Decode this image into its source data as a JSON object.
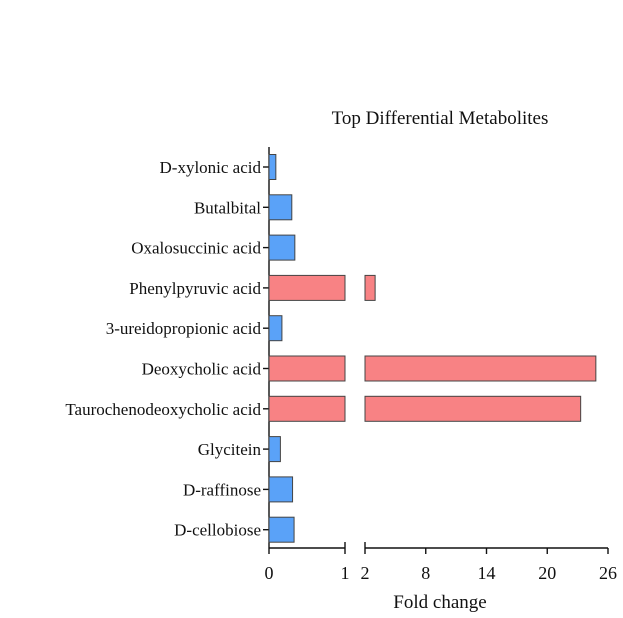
{
  "chart_data": {
    "type": "bar",
    "orientation": "horizontal",
    "title": "Top Differential Metabolites",
    "xlabel": "Fold change",
    "ylabel": "",
    "categories": [
      "D-xylonic acid",
      "Butalbital",
      "Oxalosuccinic acid",
      "Phenylpyruvic acid",
      "3-ureidopropionic acid",
      "Deoxycholic acid",
      "Taurochenodeoxycholic acid",
      "Glycitein",
      "D-raffinose",
      "D-cellobiose"
    ],
    "values": [
      0.09,
      0.3,
      0.34,
      3.0,
      0.17,
      24.8,
      23.3,
      0.15,
      0.31,
      0.33
    ],
    "direction": [
      "down",
      "down",
      "down",
      "up",
      "down",
      "up",
      "up",
      "down",
      "down",
      "down"
    ],
    "colors": {
      "down": "#5aa2f8",
      "up": "#f88284"
    },
    "x_axis": {
      "broken": true,
      "segments": [
        {
          "range": [
            0,
            1
          ],
          "ticks": [
            0,
            1
          ],
          "tick_labels": [
            "0",
            "1"
          ]
        },
        {
          "range": [
            2,
            26
          ],
          "ticks": [
            2,
            8,
            14,
            20,
            26
          ],
          "tick_labels": [
            "2",
            "8",
            "14",
            "20",
            "26"
          ]
        }
      ]
    },
    "grid": false,
    "legend": "none"
  }
}
